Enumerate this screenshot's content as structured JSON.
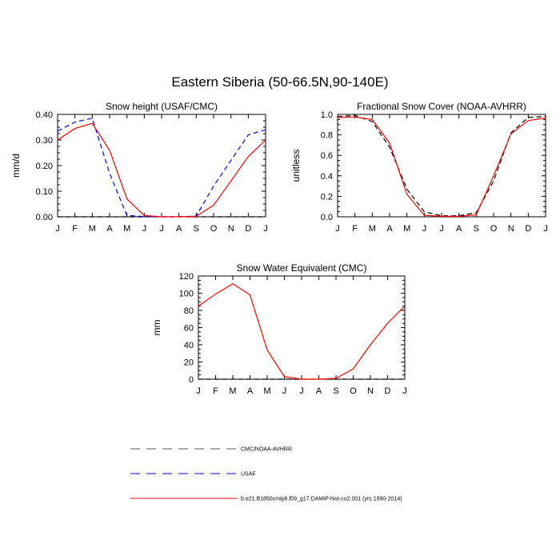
{
  "title": "Eastern Siberia (50-66.5N,90-140E)",
  "colors": {
    "model": "#ff0000",
    "usaf": "#0000ff",
    "obs": "#000000",
    "zero_line": "#999999"
  },
  "legend": [
    {
      "label": "CMC/NOAA-AVHRR",
      "color": "#000000",
      "dash": "dashed"
    },
    {
      "label": "USAF",
      "color": "#0000ff",
      "dash": "dashed"
    },
    {
      "label": "b.e21.B1850cmip6.f09_g17.DAMIP-hist-co2.001 (yrs 1990-2014)",
      "color": "#ff0000",
      "dash": "solid"
    }
  ],
  "chart_data": [
    {
      "type": "line",
      "title": "Snow height (USAF/CMC)",
      "xlabel": "",
      "ylabel": "mm/d",
      "categories": [
        "J",
        "F",
        "M",
        "A",
        "M",
        "J",
        "J",
        "A",
        "S",
        "O",
        "N",
        "D",
        "J"
      ],
      "ylim": [
        0,
        0.4
      ],
      "yticks": [
        "0.00",
        "0.10",
        "0.20",
        "0.30",
        "0.40"
      ],
      "series": [
        {
          "key": "obs",
          "values": [
            0,
            0,
            0,
            0,
            0,
            0,
            0,
            0,
            0,
            0,
            0,
            0,
            0
          ],
          "color": "#000000",
          "dash": "dashed"
        },
        {
          "key": "usaf",
          "values": [
            0.335,
            0.37,
            0.385,
            0.17,
            0.005,
            0.001,
            0.0,
            0.0,
            0.003,
            0.12,
            0.22,
            0.32,
            0.34
          ],
          "color": "#0000ff",
          "dash": "dashed"
        },
        {
          "key": "model",
          "values": [
            0.3,
            0.345,
            0.365,
            0.26,
            0.07,
            0.005,
            0.0,
            0.0,
            0.002,
            0.045,
            0.14,
            0.235,
            0.3
          ],
          "color": "#ff0000",
          "dash": "solid"
        }
      ]
    },
    {
      "type": "line",
      "title": "Fractional Snow Cover (NOAA-AVHRR)",
      "xlabel": "",
      "ylabel": "unitless",
      "categories": [
        "J",
        "F",
        "M",
        "A",
        "M",
        "J",
        "J",
        "A",
        "S",
        "O",
        "N",
        "D",
        "J"
      ],
      "ylim": [
        0,
        1.0
      ],
      "yticks": [
        "0.0",
        "0.2",
        "0.4",
        "0.6",
        "0.8",
        "1.0"
      ],
      "series": [
        {
          "key": "obs",
          "values": [
            0.98,
            0.99,
            0.93,
            0.68,
            0.27,
            0.05,
            0.01,
            0.01,
            0.04,
            0.35,
            0.82,
            0.97,
            0.98
          ],
          "color": "#000000",
          "dash": "dashed"
        },
        {
          "key": "model",
          "values": [
            0.97,
            0.975,
            0.95,
            0.72,
            0.22,
            0.015,
            0.005,
            0.005,
            0.02,
            0.4,
            0.81,
            0.94,
            0.965
          ],
          "color": "#ff0000",
          "dash": "solid"
        }
      ]
    },
    {
      "type": "line",
      "title": "Snow Water Equivalent (CMC)",
      "xlabel": "",
      "ylabel": "mm",
      "categories": [
        "J",
        "F",
        "M",
        "A",
        "M",
        "J",
        "J",
        "A",
        "S",
        "O",
        "N",
        "D",
        "J"
      ],
      "ylim": [
        0,
        120
      ],
      "yticks": [
        "0",
        "20",
        "40",
        "60",
        "80",
        "100",
        "120"
      ],
      "series": [
        {
          "key": "obs",
          "values": [
            0,
            0,
            0,
            0,
            0,
            0,
            0,
            0,
            0,
            0,
            0,
            0,
            0
          ],
          "color": "#000000",
          "dash": "dashed"
        },
        {
          "key": "model",
          "values": [
            85,
            99,
            111,
            98,
            34,
            3,
            0,
            0,
            1,
            12,
            40,
            65,
            85
          ],
          "color": "#ff0000",
          "dash": "solid"
        }
      ]
    }
  ]
}
